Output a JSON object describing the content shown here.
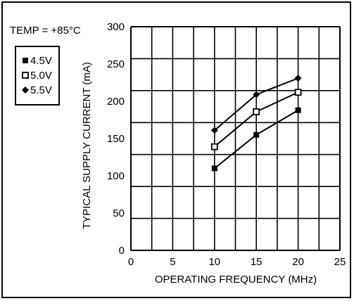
{
  "chart_data": {
    "type": "line",
    "annotation": "TEMP = +85°C",
    "xlabel": "OPERATING FREQUENCY (MHz)",
    "ylabel": "TYPICAL SUPPLY CURRENT (mA)",
    "xlim": [
      0,
      25
    ],
    "ylim": [
      0,
      300
    ],
    "xticks": [
      0,
      5,
      10,
      15,
      20,
      25
    ],
    "yticks": [
      0,
      50,
      100,
      150,
      200,
      250,
      300
    ],
    "grid": true,
    "legend_position": "top-left",
    "x": [
      10,
      15,
      20
    ],
    "series": [
      {
        "name": "4.5V",
        "marker": "filled-square",
        "values": [
          110,
          155,
          188
        ]
      },
      {
        "name": "5.0V",
        "marker": "open-square",
        "values": [
          139,
          186,
          212
        ]
      },
      {
        "name": "5.5V",
        "marker": "filled-diamond",
        "values": [
          161,
          209,
          231
        ]
      }
    ]
  }
}
